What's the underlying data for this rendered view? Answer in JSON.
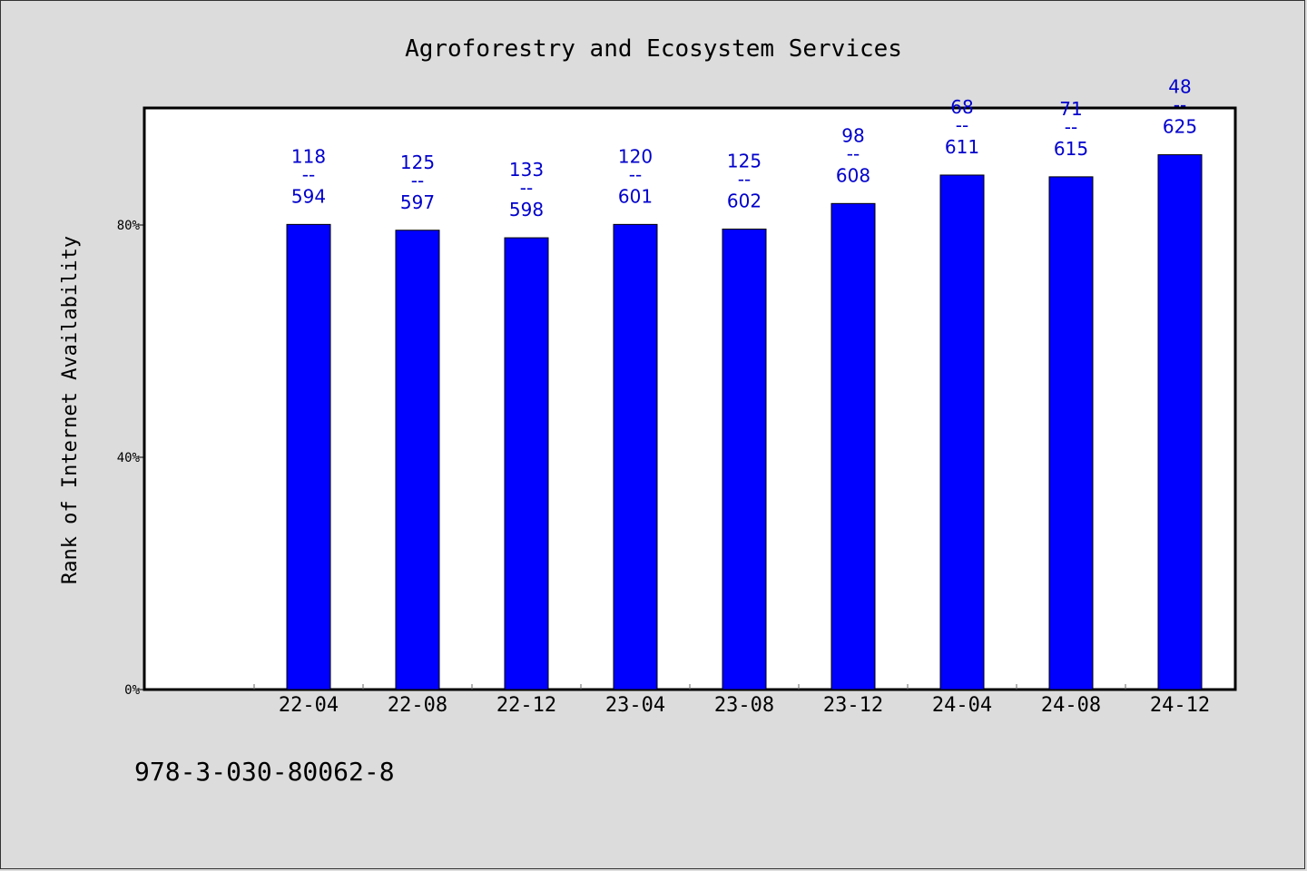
{
  "chart_data": {
    "type": "bar",
    "title": "Agroforestry and Ecosystem Services",
    "xlabel": "",
    "ylabel": "Rank of Internet Availability",
    "categories": [
      "22-04",
      "22-08",
      "22-12",
      "23-04",
      "23-08",
      "23-12",
      "24-04",
      "24-08",
      "24-12"
    ],
    "values": [
      80.1,
      79.1,
      77.8,
      80.1,
      79.3,
      83.7,
      88.6,
      88.3,
      92.1
    ],
    "value_unit": "%",
    "rank": [
      118,
      125,
      133,
      120,
      125,
      98,
      68,
      71,
      48
    ],
    "total": [
      594,
      597,
      598,
      601,
      602,
      608,
      611,
      615,
      625
    ],
    "label_separator": "--",
    "ylim": [
      0,
      100
    ],
    "yticks": [
      0,
      40,
      80
    ],
    "ytick_labels": [
      "0%",
      "40%",
      "80%"
    ],
    "grid": false,
    "bar_color": "#0000ff",
    "label_color": "#0000cc"
  },
  "footer": {
    "identifier": "978-3-030-80062-8"
  }
}
